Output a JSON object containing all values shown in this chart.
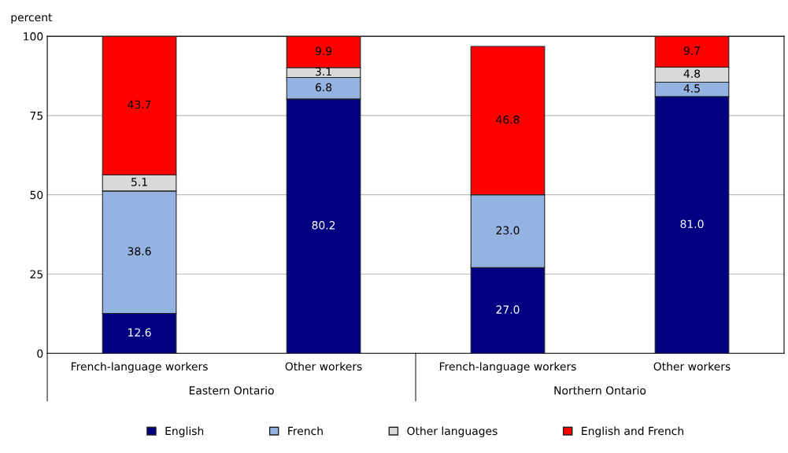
{
  "chart_data": {
    "type": "bar",
    "stacked": true,
    "ylabel": "percent",
    "categories": [
      "French-language workers",
      "Other workers",
      "French-language workers",
      "Other workers"
    ],
    "series": [
      {
        "name": "English",
        "color": "#000080",
        "values": [
          12.6,
          80.2,
          27.0,
          81.0
        ],
        "value_labels": [
          "12.6",
          "80.2",
          "27.0",
          "81.0"
        ]
      },
      {
        "name": "French",
        "color": "#95b3e0",
        "values": [
          38.6,
          6.8,
          23.0,
          4.5
        ],
        "value_labels": [
          "38.6",
          "6.8",
          "23.0",
          "4.5"
        ]
      },
      {
        "name": "Other languages",
        "color": "#d9d9d9",
        "values": [
          5.1,
          3.1,
          null,
          4.8
        ],
        "value_labels": [
          "5.1",
          "3.1",
          null,
          "4.8"
        ]
      },
      {
        "name": "English and French",
        "color": "#ff0000",
        "values": [
          43.7,
          9.9,
          46.8,
          9.7
        ],
        "value_labels": [
          "43.7",
          "9.9",
          "46.8",
          "9.7"
        ]
      }
    ],
    "ylim": [
      0,
      100
    ],
    "yticks": [
      0,
      25,
      50,
      75,
      100
    ],
    "grid": "y",
    "legend": "bottom",
    "annotations": [
      "Eastern Ontario",
      "Northern Ontario"
    ]
  }
}
